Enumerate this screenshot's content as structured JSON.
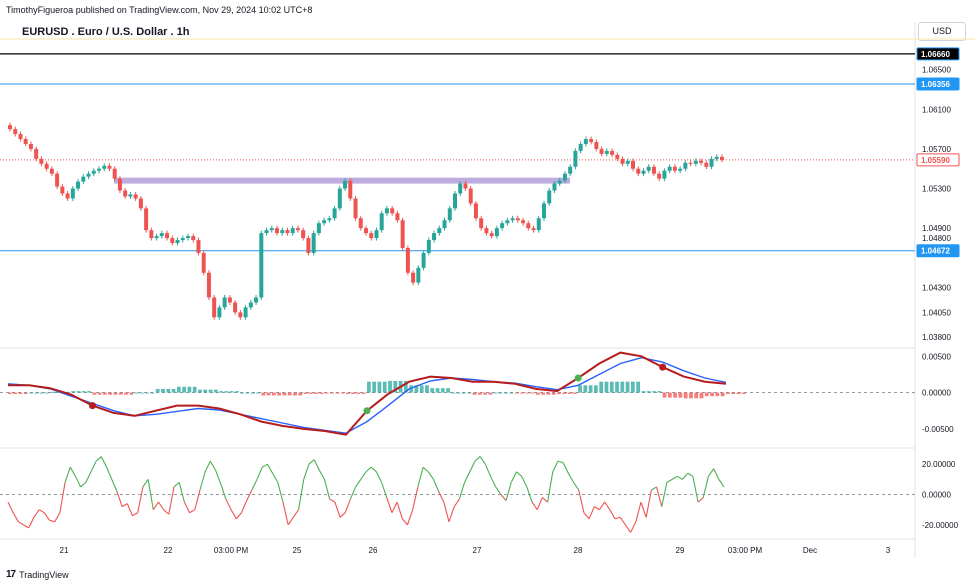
{
  "header": {
    "publisher": "TimothyFigueroa published on TradingView.com, Nov 29, 2024 10:02 UTC+8",
    "symbol_title": "EURUSD . Euro / U.S. Dollar . 1h",
    "currency": "USD"
  },
  "footer": {
    "logo_mark": "17",
    "logo_text": "TradingView"
  },
  "colors": {
    "up": "#26a69a",
    "down": "#ef5350",
    "zone": "#b39ddb",
    "hline_blue": "#2196f3",
    "hline_black": "#000000",
    "macd": "#2962ff",
    "signal": "#b71c1c",
    "rsi_up": "#4caf50"
  },
  "chart_data": [
    {
      "type": "candlestick",
      "title": "EURUSD . Euro / U.S. Dollar . 1h",
      "ylim": [
        1.037,
        1.068
      ],
      "y_ticks": [
        "1.06500",
        "1.06100",
        "1.05700",
        "1.05300",
        "1.04900",
        "1.04800",
        "1.04300",
        "1.04050",
        "1.03800"
      ],
      "x_ticks": [
        "21",
        "22",
        "03:00 PM",
        "25",
        "26",
        "27",
        "28",
        "29",
        "03:00 PM",
        "Dec",
        "3"
      ],
      "price_labels": [
        {
          "label": "1.06660",
          "value": 1.0666,
          "style": "black"
        },
        {
          "label": "1.06356",
          "value": 1.06356,
          "style": "blue"
        },
        {
          "label": "1.05590",
          "value": 1.0559,
          "style": "red"
        },
        {
          "label": "1.04672",
          "value": 1.04672,
          "style": "blue"
        }
      ],
      "horizontal_lines": [
        {
          "value": 1.0666,
          "color": "black"
        },
        {
          "value": 1.06356,
          "color": "blue"
        },
        {
          "value": 1.04672,
          "color": "blue"
        },
        {
          "value": 1.0559,
          "color": "red-dotted"
        }
      ],
      "resistance_zone": {
        "from_value": 1.0535,
        "to_value": 1.0541
      },
      "series": [
        {
          "close": [
            1.059,
            1.0585,
            1.058,
            1.0575,
            1.057,
            1.056,
            1.0555,
            1.055,
            1.0545,
            1.0532,
            1.0525,
            1.052,
            1.053,
            1.0537,
            1.0542,
            1.0545,
            1.0548,
            1.055,
            1.0553,
            1.055,
            1.054,
            1.0528,
            1.0522,
            1.0524,
            1.052,
            1.051,
            1.0488,
            1.048,
            1.0482,
            1.0485,
            1.048,
            1.0475,
            1.0478,
            1.048,
            1.0482,
            1.0478,
            1.0465,
            1.0445,
            1.042,
            1.04,
            1.041,
            1.042,
            1.0415,
            1.0405,
            1.04,
            1.041,
            1.0415,
            1.042,
            1.0485,
            1.0488,
            1.049,
            1.0485,
            1.0488,
            1.0485,
            1.049,
            1.0488,
            1.048,
            1.0465,
            1.0485,
            1.0495,
            1.0498,
            1.05,
            1.051,
            1.053,
            1.0538,
            1.052,
            1.05,
            1.049,
            1.0485,
            1.048,
            1.0488,
            1.0505,
            1.051,
            1.0505,
            1.0498,
            1.047,
            1.0445,
            1.0435,
            1.045,
            1.0465,
            1.0478,
            1.0485,
            1.049,
            1.0498,
            1.051,
            1.0525,
            1.0535,
            1.053,
            1.0515,
            1.05,
            1.049,
            1.0485,
            1.0482,
            1.049,
            1.0495,
            1.0498,
            1.05,
            1.0498,
            1.0495,
            1.049,
            1.0488,
            1.05,
            1.0515,
            1.0528,
            1.0535,
            1.0538,
            1.0545,
            1.0552,
            1.0568,
            1.0575,
            1.058,
            1.0577,
            1.057,
            1.0565,
            1.0568,
            1.0564,
            1.056,
            1.0555,
            1.0558,
            1.055,
            1.0545,
            1.0548,
            1.0552,
            1.0545,
            1.054,
            1.0548,
            1.0552,
            1.0548,
            1.055,
            1.0556,
            1.0555,
            1.0558,
            1.0556,
            1.0552,
            1.056,
            1.0562,
            1.0559
          ]
        }
      ]
    },
    {
      "type": "line",
      "name": "MACD",
      "ylim": [
        -0.0075,
        0.006
      ],
      "y_ticks": [
        "0.00500",
        "0.00000",
        "-0.00500"
      ],
      "series": [
        {
          "values": [
            0.001,
            0.001,
            0.0006,
            -0.0003,
            -0.0018,
            -0.0028,
            -0.0032,
            -0.0025,
            -0.0018,
            -0.0018,
            -0.0022,
            -0.003,
            -0.004,
            -0.0046,
            -0.005,
            -0.0053,
            -0.0058,
            -0.0025,
            -0.0002,
            0.0015,
            0.0022,
            0.002,
            0.0015,
            0.0015,
            0.0012,
            0.0005,
            0.0002,
            0.002,
            0.004,
            0.0055,
            0.005,
            0.0035,
            0.0022,
            0.0015,
            0.0012
          ]
        },
        {
          "values": [
            0.0012,
            0.001,
            0.0005,
            -0.0005,
            -0.0015,
            -0.0025,
            -0.0032,
            -0.003,
            -0.0026,
            -0.0022,
            -0.0024,
            -0.003,
            -0.0036,
            -0.0042,
            -0.0048,
            -0.0052,
            -0.0056,
            -0.004,
            -0.0018,
            0.0005,
            0.0016,
            0.002,
            0.0018,
            0.0015,
            0.0013,
            0.0008,
            0.0004,
            0.001,
            0.0025,
            0.004,
            0.0048,
            0.0042,
            0.003,
            0.002,
            0.0014
          ]
        },
        {
          "values": [
            -0.0002,
            0.0,
            0.0001,
            0.0002,
            -0.0003,
            -0.0003,
            0.0,
            0.0005,
            0.0008,
            0.0004,
            0.0002,
            0.0,
            -0.0004,
            -0.0004,
            -0.0002,
            -0.0001,
            -0.0002,
            0.0015,
            0.0016,
            0.001,
            0.0006,
            0.0,
            -0.0003,
            0.0,
            -0.0001,
            -0.0003,
            -0.0002,
            0.001,
            0.0015,
            0.0015,
            0.0002,
            -0.0007,
            -0.0008,
            -0.0005,
            -0.0002
          ]
        }
      ]
    },
    {
      "type": "line",
      "name": "RSI",
      "ylim": [
        -28,
        30
      ],
      "y_ticks": [
        "20.00000",
        "0.00000",
        "-20.00000"
      ],
      "series": [
        {
          "values": [
            -5,
            -12,
            -18,
            -20,
            -22,
            -15,
            -10,
            -12,
            -17,
            -18,
            -12,
            8,
            18,
            12,
            5,
            8,
            15,
            22,
            25,
            18,
            10,
            2,
            -8,
            -6,
            -14,
            -12,
            5,
            10,
            -10,
            -5,
            -10,
            -13,
            5,
            8,
            -5,
            -12,
            -10,
            3,
            15,
            22,
            16,
            7,
            -3,
            -10,
            -16,
            -12,
            -4,
            3,
            10,
            18,
            20,
            14,
            8,
            -5,
            -20,
            -15,
            -10,
            10,
            20,
            23,
            16,
            10,
            -3,
            -5,
            -15,
            -12,
            -3,
            5,
            10,
            15,
            18,
            15,
            8,
            -2,
            -12,
            -5,
            -16,
            -20,
            -10,
            5,
            18,
            15,
            10,
            2,
            -5,
            -18,
            -8,
            -3,
            8,
            15,
            22,
            25,
            20,
            12,
            5,
            0,
            -4,
            8,
            15,
            12,
            5,
            -5,
            -10,
            -2,
            -5,
            15,
            22,
            21,
            14,
            8,
            3,
            -12,
            -16,
            -8,
            -10,
            -5,
            -10,
            -16,
            -15,
            -20,
            -25,
            -18,
            -5,
            -15,
            3,
            5,
            -8,
            8,
            10,
            12,
            10,
            14,
            12,
            -5,
            -2,
            12,
            17,
            10,
            5
          ]
        }
      ]
    }
  ]
}
